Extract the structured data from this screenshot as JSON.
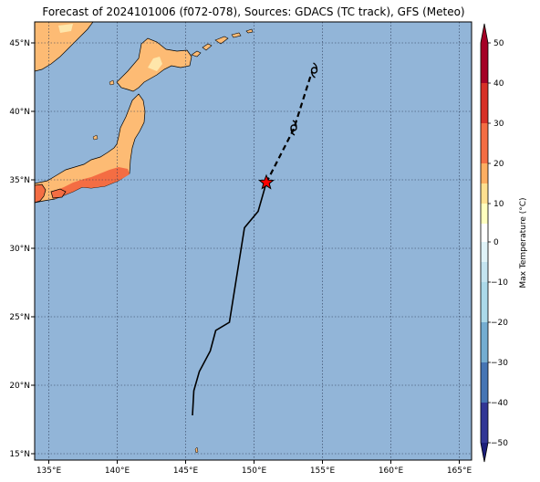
{
  "title": "Forecast of 2024101006 (f072-078), Sources: GDACS (TC track), GFS (Meteo)",
  "lon_ticks": [
    "135°E",
    "140°E",
    "145°E",
    "150°E",
    "155°E",
    "160°E",
    "165°E"
  ],
  "lat_ticks": [
    "45°N",
    "40°N",
    "35°N",
    "30°N",
    "25°N",
    "20°N",
    "15°N"
  ],
  "colorbar": {
    "label": "Max Temperature (°C)",
    "ticks": [
      "50",
      "40",
      "30",
      "20",
      "10",
      "0",
      "−10",
      "−20",
      "−30",
      "−40",
      "−50"
    ]
  },
  "track": {
    "observed": [
      [
        145.5,
        17.8
      ],
      [
        145.6,
        19.6
      ],
      [
        146.0,
        21.0
      ],
      [
        146.8,
        22.5
      ],
      [
        147.2,
        24.0
      ],
      [
        148.2,
        24.6
      ],
      [
        149.3,
        31.5
      ],
      [
        150.3,
        32.7
      ],
      [
        150.9,
        34.8
      ]
    ],
    "forecast": [
      [
        150.9,
        34.8
      ],
      [
        152.9,
        38.7
      ],
      [
        154.2,
        42.8
      ]
    ],
    "current_position": [
      150.9,
      34.8
    ],
    "storm_symbol_positions": [
      [
        152.9,
        38.8
      ],
      [
        154.4,
        43.0
      ]
    ],
    "colors": {
      "track": "#000000",
      "current_marker": "#ff0000"
    }
  },
  "colors": {
    "ocean": "#92b5d8",
    "land_base": "#fdbb74",
    "land_warm": "#f46d43",
    "land_cool": "#fee6aa"
  }
}
